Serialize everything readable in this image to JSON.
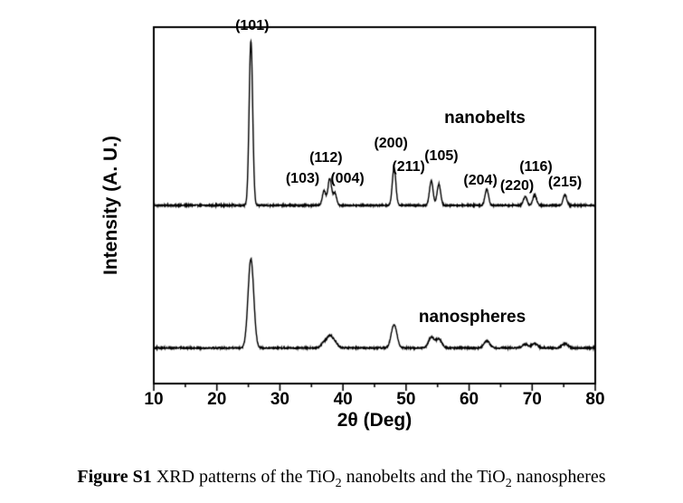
{
  "figure": {
    "caption_parts": [
      {
        "text": "Figure S1",
        "bold": true
      },
      {
        "text": " XRD patterns of the TiO"
      },
      {
        "text": "2",
        "sub": true
      },
      {
        "text": " nanobelts and the TiO"
      },
      {
        "text": "2",
        "sub": true
      },
      {
        "text": " nanospheres"
      }
    ]
  },
  "chart_data": {
    "type": "line",
    "title": "",
    "xlabel": "2θ (Deg)",
    "ylabel": "Intensity (A. U.)",
    "xlim": [
      10,
      80
    ],
    "ylim": [
      0,
      200
    ],
    "x_ticks": [
      10,
      20,
      30,
      40,
      50,
      60,
      70,
      80
    ],
    "x_minor_step": 5,
    "grid": false,
    "line_color": "#000000",
    "background_color": "#ffffff",
    "legend_position": "none",
    "series": [
      {
        "name": "nanobelts",
        "label": "nanobelts",
        "label_pos": {
          "x": 62.5,
          "y": 143
        },
        "baseline": 100,
        "peak_width_deg": 0.28,
        "peaks": [
          {
            "two_theta": 25.4,
            "hkl": "(101)",
            "height": 92
          },
          {
            "two_theta": 37.0,
            "hkl": "(103)",
            "height": 8
          },
          {
            "two_theta": 37.9,
            "hkl": "(004)",
            "height": 15
          },
          {
            "two_theta": 38.7,
            "hkl": "(112)",
            "height": 7
          },
          {
            "two_theta": 48.1,
            "hkl": "(200)",
            "height": 21
          },
          {
            "two_theta": 54.0,
            "hkl": "(105)",
            "height": 14
          },
          {
            "two_theta": 55.2,
            "hkl": "(211)",
            "height": 12
          },
          {
            "two_theta": 62.8,
            "hkl": "(204)",
            "height": 9
          },
          {
            "two_theta": 68.9,
            "hkl": "(116)",
            "height": 5
          },
          {
            "two_theta": 70.4,
            "hkl": "(220)",
            "height": 6
          },
          {
            "two_theta": 75.2,
            "hkl": "(215)",
            "height": 6
          }
        ]
      },
      {
        "name": "nanospheres",
        "label": "nanospheres",
        "label_pos": {
          "x": 60.5,
          "y": 31.5
        },
        "baseline": 20,
        "peak_width_deg": 0.45,
        "peaks": [
          {
            "two_theta": 25.4,
            "hkl": "(101)",
            "height": 50
          },
          {
            "two_theta": 37.0,
            "hkl": "(103)",
            "height": 3
          },
          {
            "two_theta": 37.9,
            "hkl": "(004)",
            "height": 6
          },
          {
            "two_theta": 38.7,
            "hkl": "(112)",
            "height": 3
          },
          {
            "two_theta": 48.1,
            "hkl": "(200)",
            "height": 13
          },
          {
            "two_theta": 54.0,
            "hkl": "(105)",
            "height": 6
          },
          {
            "two_theta": 55.2,
            "hkl": "(211)",
            "height": 5
          },
          {
            "two_theta": 62.8,
            "hkl": "(204)",
            "height": 4
          },
          {
            "two_theta": 68.9,
            "hkl": "(116)",
            "height": 2
          },
          {
            "two_theta": 70.4,
            "hkl": "(220)",
            "height": 2.5
          },
          {
            "two_theta": 75.2,
            "hkl": "(215)",
            "height": 2.5
          }
        ]
      }
    ],
    "annotations": [
      {
        "text": "(101)",
        "x": 25.6,
        "y": 196
      },
      {
        "text": "(103)",
        "x": 33.6,
        "y": 110
      },
      {
        "text": "(112)",
        "x": 37.3,
        "y": 122
      },
      {
        "text": "(004)",
        "x": 40.7,
        "y": 110
      },
      {
        "text": "(200)",
        "x": 47.6,
        "y": 130
      },
      {
        "text": "(211)",
        "x": 50.4,
        "y": 117
      },
      {
        "text": "(105)",
        "x": 55.6,
        "y": 123
      },
      {
        "text": "(204)",
        "x": 61.8,
        "y": 109
      },
      {
        "text": "(220)",
        "x": 67.6,
        "y": 106
      },
      {
        "text": "(116)",
        "x": 70.6,
        "y": 117
      },
      {
        "text": "(215)",
        "x": 75.2,
        "y": 108
      }
    ]
  }
}
